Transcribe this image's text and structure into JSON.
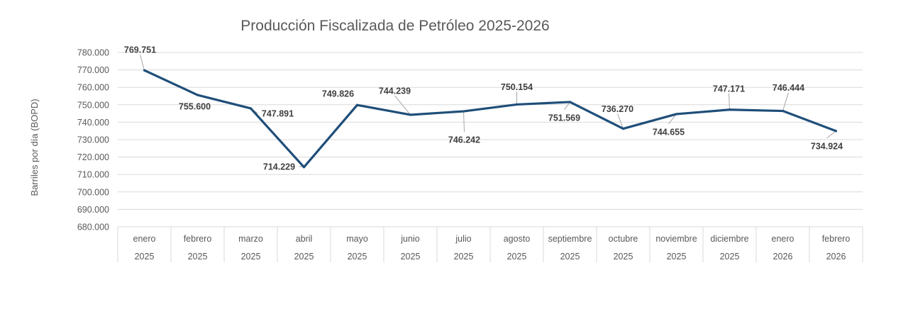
{
  "chart_data": {
    "type": "line",
    "title": "Producción Fiscalizada de Petróleo 2025-2026",
    "xlabel": "",
    "ylabel": "Barriles por día (BOPD)",
    "ylim": [
      680000,
      780000
    ],
    "yticks": [
      680000,
      690000,
      700000,
      710000,
      720000,
      730000,
      740000,
      750000,
      760000,
      770000,
      780000
    ],
    "ytick_labels": [
      "680.000",
      "690.000",
      "700.000",
      "710.000",
      "720.000",
      "730.000",
      "740.000",
      "750.000",
      "760.000",
      "770.000",
      "780.000"
    ],
    "grid": true,
    "legend": "none",
    "line_color": "#1F4E79",
    "categories": [
      {
        "month": "enero",
        "year": "2025"
      },
      {
        "month": "febrero",
        "year": "2025"
      },
      {
        "month": "marzo",
        "year": "2025"
      },
      {
        "month": "abril",
        "year": "2025"
      },
      {
        "month": "mayo",
        "year": "2025"
      },
      {
        "month": "junio",
        "year": "2025"
      },
      {
        "month": "julio",
        "year": "2025"
      },
      {
        "month": "agosto",
        "year": "2025"
      },
      {
        "month": "septiembre",
        "year": "2025"
      },
      {
        "month": "octubre",
        "year": "2025"
      },
      {
        "month": "noviembre",
        "year": "2025"
      },
      {
        "month": "diciembre",
        "year": "2025"
      },
      {
        "month": "enero",
        "year": "2026"
      },
      {
        "month": "febrero",
        "year": "2026"
      }
    ],
    "values": [
      769751,
      755600,
      747891,
      714229,
      749826,
      744239,
      746242,
      750154,
      751569,
      736270,
      744655,
      747171,
      746444,
      734924
    ],
    "data_labels": [
      "769.751",
      "755.600",
      "747.891",
      "714.229",
      "749.826",
      "744.239",
      "746.242",
      "750.154",
      "751.569",
      "736.270",
      "744.655",
      "747.171",
      "746.444",
      "734.924"
    ]
  }
}
